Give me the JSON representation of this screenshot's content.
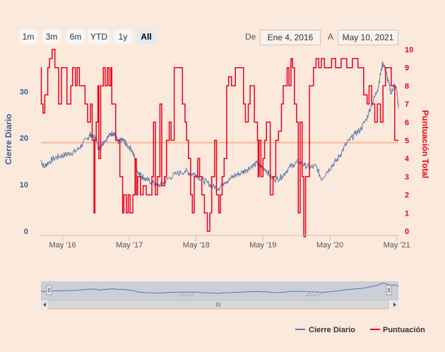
{
  "range_selector": {
    "buttons": [
      "1m",
      "3m",
      "6m",
      "YTD",
      "1y",
      "All"
    ],
    "active": "All",
    "from_label": "De",
    "from_value": "Ene 4, 2016",
    "to_label": "A",
    "to_value": "May 10, 2021"
  },
  "colors": {
    "background": "#fbe9dc",
    "close_series": "#5b79a8",
    "score_series": "#e8001c",
    "plot_line": "#f5b896",
    "left_axis_title": "#3a5c8f",
    "right_axis_title": "#e8001c"
  },
  "navigator": {
    "year_labels": [
      "2018",
      "2020"
    ],
    "scrollbar_grip": "III"
  },
  "chart_data": {
    "type": "line",
    "x_start": "2016-01-04",
    "x_end": "2021-05-10",
    "x_tick_labels": [
      "May '16",
      "May '17",
      "May '18",
      "May '19",
      "May '20",
      "May '21"
    ],
    "left_axis": {
      "title": "Cierre Diario",
      "ticks": [
        "0",
        "10",
        "20",
        "30"
      ],
      "range": [
        0,
        39
      ]
    },
    "right_axis": {
      "title": "Puntuación Total",
      "ticks": [
        "0",
        "1",
        "2",
        "3",
        "4",
        "5",
        "6",
        "7",
        "8",
        "9",
        "10"
      ],
      "range": [
        0,
        10
      ]
    },
    "plot_line_value": 19,
    "legend_position": "bottom-right",
    "grid": false,
    "series": [
      {
        "name": "Cierre Diario",
        "axis": "left",
        "points": [
          [
            "2016-01-04",
            15.2
          ],
          [
            "2016-01-20",
            13.8
          ],
          [
            "2016-02-15",
            14.8
          ],
          [
            "2016-03-15",
            15.6
          ],
          [
            "2016-04-15",
            16.1
          ],
          [
            "2016-05-15",
            16.4
          ],
          [
            "2016-06-15",
            16.8
          ],
          [
            "2016-07-15",
            17.2
          ],
          [
            "2016-08-15",
            18.5
          ],
          [
            "2016-09-15",
            20.0
          ],
          [
            "2016-10-01",
            20.8
          ],
          [
            "2016-10-15",
            20.3
          ],
          [
            "2016-11-01",
            19.8
          ],
          [
            "2016-11-15",
            17.6
          ],
          [
            "2016-12-01",
            18.6
          ],
          [
            "2016-12-15",
            19.4
          ],
          [
            "2017-01-15",
            20.6
          ],
          [
            "2017-02-01",
            21.2
          ],
          [
            "2017-02-15",
            20.5
          ],
          [
            "2017-03-01",
            18.8
          ],
          [
            "2017-03-15",
            19.6
          ],
          [
            "2017-04-01",
            19.4
          ],
          [
            "2017-04-15",
            18.6
          ],
          [
            "2017-05-15",
            17.5
          ],
          [
            "2017-06-01",
            15.4
          ],
          [
            "2017-06-15",
            12.8
          ],
          [
            "2017-07-01",
            12.1
          ],
          [
            "2017-07-15",
            11.6
          ],
          [
            "2017-08-01",
            11.0
          ],
          [
            "2017-09-01",
            10.6
          ],
          [
            "2017-10-01",
            9.6
          ],
          [
            "2017-11-01",
            10.3
          ],
          [
            "2017-12-01",
            11.4
          ],
          [
            "2018-01-15",
            12.3
          ],
          [
            "2018-03-01",
            12.9
          ],
          [
            "2018-04-01",
            12.4
          ],
          [
            "2018-05-01",
            12.2
          ],
          [
            "2018-06-01",
            11.1
          ],
          [
            "2018-07-01",
            10.4
          ],
          [
            "2018-08-01",
            9.6
          ],
          [
            "2018-09-01",
            9.2
          ],
          [
            "2018-10-01",
            10.6
          ],
          [
            "2018-11-01",
            11.1
          ],
          [
            "2018-12-01",
            12.0
          ],
          [
            "2019-01-01",
            12.5
          ],
          [
            "2019-02-01",
            13.2
          ],
          [
            "2019-03-01",
            14.0
          ],
          [
            "2019-04-01",
            14.5
          ],
          [
            "2019-04-20",
            13.8
          ],
          [
            "2019-05-15",
            13.3
          ],
          [
            "2019-06-15",
            11.6
          ],
          [
            "2019-07-15",
            11.1
          ],
          [
            "2019-08-15",
            11.8
          ],
          [
            "2019-09-15",
            13.4
          ],
          [
            "2019-10-15",
            14.3
          ],
          [
            "2019-11-15",
            14.9
          ],
          [
            "2019-12-15",
            14.1
          ],
          [
            "2020-01-15",
            13.6
          ],
          [
            "2020-02-15",
            14.0
          ],
          [
            "2020-03-15",
            11.2
          ],
          [
            "2020-04-15",
            12.8
          ],
          [
            "2020-05-15",
            14.2
          ],
          [
            "2020-06-15",
            15.6
          ],
          [
            "2020-07-15",
            17.8
          ],
          [
            "2020-08-15",
            19.5
          ],
          [
            "2020-09-15",
            20.9
          ],
          [
            "2020-10-15",
            21.8
          ],
          [
            "2020-11-15",
            24.0
          ],
          [
            "2020-12-15",
            27.2
          ],
          [
            "2021-01-15",
            30.2
          ],
          [
            "2021-02-01",
            33.6
          ],
          [
            "2021-02-15",
            36.2
          ],
          [
            "2021-03-01",
            34.5
          ],
          [
            "2021-03-15",
            32.2
          ],
          [
            "2021-04-01",
            29.5
          ],
          [
            "2021-04-15",
            31.4
          ],
          [
            "2021-05-01",
            30.4
          ],
          [
            "2021-05-10",
            26.4
          ]
        ]
      },
      {
        "name": "Puntuación Total",
        "axis": "right",
        "step": true,
        "points": [
          [
            "2016-01-04",
            9
          ],
          [
            "2016-01-06",
            7
          ],
          [
            "2016-01-15",
            6.5
          ],
          [
            "2016-01-25",
            7.5
          ],
          [
            "2016-02-10",
            9
          ],
          [
            "2016-02-20",
            9.5
          ],
          [
            "2016-03-05",
            10
          ],
          [
            "2016-03-20",
            9
          ],
          [
            "2016-04-10",
            7
          ],
          [
            "2016-04-25",
            9
          ],
          [
            "2016-05-25",
            7
          ],
          [
            "2016-06-15",
            8
          ],
          [
            "2016-06-25",
            9
          ],
          [
            "2016-07-10",
            8
          ],
          [
            "2016-07-20",
            9
          ],
          [
            "2016-08-01",
            8
          ],
          [
            "2016-09-01",
            7
          ],
          [
            "2016-09-15",
            6
          ],
          [
            "2016-10-01",
            7
          ],
          [
            "2016-10-10",
            5
          ],
          [
            "2016-10-20",
            1
          ],
          [
            "2016-10-25",
            5
          ],
          [
            "2016-11-01",
            6
          ],
          [
            "2016-11-10",
            8
          ],
          [
            "2016-11-15",
            4
          ],
          [
            "2016-11-25",
            8
          ],
          [
            "2016-12-10",
            9
          ],
          [
            "2016-12-20",
            8
          ],
          [
            "2017-01-01",
            9
          ],
          [
            "2017-01-10",
            8
          ],
          [
            "2017-01-20",
            9
          ],
          [
            "2017-01-25",
            7
          ],
          [
            "2017-02-15",
            5
          ],
          [
            "2017-03-10",
            3
          ],
          [
            "2017-03-25",
            1
          ],
          [
            "2017-04-01",
            2
          ],
          [
            "2017-04-15",
            1
          ],
          [
            "2017-04-25",
            2
          ],
          [
            "2017-05-05",
            1
          ],
          [
            "2017-05-20",
            2
          ],
          [
            "2017-06-01",
            4
          ],
          [
            "2017-06-08",
            2
          ],
          [
            "2017-06-15",
            3
          ],
          [
            "2017-07-01",
            2
          ],
          [
            "2017-07-15",
            2.5
          ],
          [
            "2017-08-01",
            2
          ],
          [
            "2017-09-01",
            3
          ],
          [
            "2017-09-10",
            6
          ],
          [
            "2017-09-20",
            2
          ],
          [
            "2017-10-01",
            3
          ],
          [
            "2017-10-15",
            7
          ],
          [
            "2017-10-25",
            2.5
          ],
          [
            "2017-11-10",
            3
          ],
          [
            "2017-11-20",
            5
          ],
          [
            "2017-12-05",
            6
          ],
          [
            "2017-12-15",
            5
          ],
          [
            "2018-01-01",
            9
          ],
          [
            "2018-02-15",
            7
          ],
          [
            "2018-03-01",
            6
          ],
          [
            "2018-03-10",
            5
          ],
          [
            "2018-03-20",
            4
          ],
          [
            "2018-04-01",
            2
          ],
          [
            "2018-04-10",
            1
          ],
          [
            "2018-04-20",
            3
          ],
          [
            "2018-05-10",
            4
          ],
          [
            "2018-05-20",
            3
          ],
          [
            "2018-06-01",
            2
          ],
          [
            "2018-06-15",
            1
          ],
          [
            "2018-07-01",
            0
          ],
          [
            "2018-07-15",
            1
          ],
          [
            "2018-07-25",
            3
          ],
          [
            "2018-08-10",
            5
          ],
          [
            "2018-08-20",
            2
          ],
          [
            "2018-09-01",
            1
          ],
          [
            "2018-09-10",
            2
          ],
          [
            "2018-09-20",
            3
          ],
          [
            "2018-10-01",
            4
          ],
          [
            "2018-10-15",
            8
          ],
          [
            "2018-10-25",
            8.5
          ],
          [
            "2018-11-10",
            8
          ],
          [
            "2018-12-01",
            9
          ],
          [
            "2019-01-15",
            7
          ],
          [
            "2019-01-25",
            6
          ],
          [
            "2019-02-10",
            7
          ],
          [
            "2019-02-20",
            8
          ],
          [
            "2019-03-15",
            6
          ],
          [
            "2019-04-01",
            5
          ],
          [
            "2019-04-05",
            3
          ],
          [
            "2019-04-10",
            5
          ],
          [
            "2019-04-20",
            3
          ],
          [
            "2019-05-01",
            4
          ],
          [
            "2019-05-10",
            5
          ],
          [
            "2019-05-20",
            6
          ],
          [
            "2019-06-10",
            2
          ],
          [
            "2019-06-25",
            3
          ],
          [
            "2019-07-10",
            5
          ],
          [
            "2019-07-25",
            5.5
          ],
          [
            "2019-08-10",
            7
          ],
          [
            "2019-08-20",
            8
          ],
          [
            "2019-09-10",
            9
          ],
          [
            "2019-09-20",
            8
          ],
          [
            "2019-10-01",
            9.5
          ],
          [
            "2019-10-10",
            9
          ],
          [
            "2019-10-20",
            7
          ],
          [
            "2019-11-01",
            6
          ],
          [
            "2019-11-10",
            1
          ],
          [
            "2019-11-20",
            6
          ],
          [
            "2019-12-01",
            3
          ],
          [
            "2019-12-10",
            -0.3
          ],
          [
            "2019-12-20",
            3
          ],
          [
            "2020-01-10",
            8
          ],
          [
            "2020-02-01",
            9
          ],
          [
            "2020-02-15",
            9.5
          ],
          [
            "2020-03-01",
            9
          ],
          [
            "2020-03-15",
            9.5
          ],
          [
            "2020-04-01",
            9
          ],
          [
            "2020-05-10",
            9.5
          ],
          [
            "2020-06-01",
            9
          ],
          [
            "2020-07-01",
            9.5
          ],
          [
            "2020-08-01",
            9
          ],
          [
            "2020-09-01",
            9.5
          ],
          [
            "2020-10-01",
            9
          ],
          [
            "2020-11-01",
            7.5
          ],
          [
            "2020-11-20",
            7
          ],
          [
            "2020-12-01",
            8
          ],
          [
            "2020-12-15",
            7
          ],
          [
            "2021-01-01",
            6
          ],
          [
            "2021-01-15",
            7
          ],
          [
            "2021-02-01",
            6
          ],
          [
            "2021-02-15",
            8
          ],
          [
            "2021-03-01",
            9
          ],
          [
            "2021-04-01",
            8
          ],
          [
            "2021-04-20",
            5
          ],
          [
            "2021-05-10",
            5
          ]
        ]
      }
    ]
  }
}
